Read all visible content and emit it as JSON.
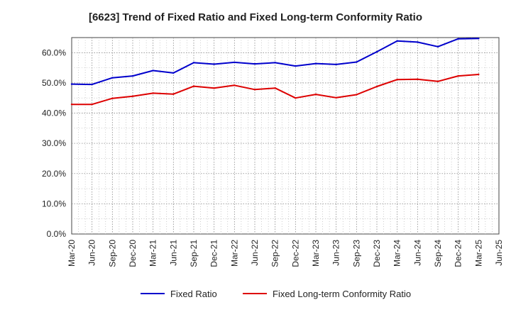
{
  "chart_data": {
    "type": "line",
    "title": "[6623]  Trend of Fixed Ratio and Fixed Long-term Conformity Ratio",
    "xlabel": "",
    "ylabel": "",
    "ylim": [
      0,
      65
    ],
    "y_ticks": [
      0,
      10,
      20,
      30,
      40,
      50,
      60
    ],
    "y_tick_labels": [
      "0.0%",
      "10.0%",
      "20.0%",
      "30.0%",
      "40.0%",
      "50.0%",
      "60.0%"
    ],
    "categories": [
      "Mar-20",
      "Jun-20",
      "Sep-20",
      "Dec-20",
      "Mar-21",
      "Jun-21",
      "Sep-21",
      "Dec-21",
      "Mar-22",
      "Jun-22",
      "Sep-22",
      "Dec-22",
      "Mar-23",
      "Jun-23",
      "Sep-23",
      "Dec-23",
      "Mar-24",
      "Jun-24",
      "Sep-24",
      "Dec-24",
      "Mar-25",
      "Jun-25"
    ],
    "grid": true,
    "legend_position": "bottom",
    "series": [
      {
        "name": "Fixed Ratio",
        "color": "#0000cc",
        "values": [
          49.6,
          49.5,
          51.7,
          52.3,
          54.1,
          53.3,
          56.7,
          56.2,
          56.8,
          56.3,
          56.7,
          55.6,
          56.4,
          56.1,
          56.9,
          60.3,
          63.9,
          63.5,
          62.0,
          64.6,
          64.7,
          null
        ]
      },
      {
        "name": "Fixed Long-term Conformity Ratio",
        "color": "#dd0000",
        "values": [
          42.9,
          42.9,
          44.9,
          45.6,
          46.6,
          46.3,
          48.9,
          48.3,
          49.2,
          47.8,
          48.3,
          45.0,
          46.2,
          45.1,
          46.1,
          48.8,
          51.1,
          51.2,
          50.5,
          52.3,
          52.8,
          null
        ]
      }
    ]
  }
}
